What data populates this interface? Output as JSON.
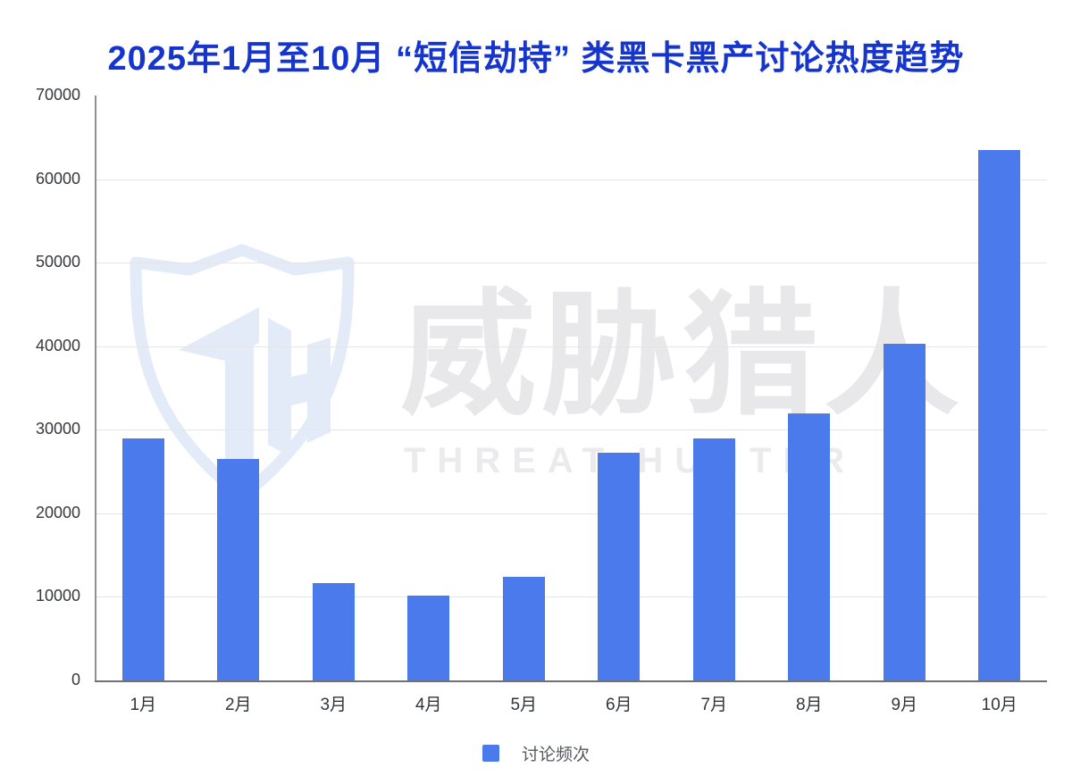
{
  "title": "2025年1月至10月 “短信劫持” 类黑卡黑产讨论热度趋势",
  "watermark": {
    "monogram": "TH",
    "cn": "威胁猎人",
    "en": "THREAT HUNTER"
  },
  "legend": {
    "label": "讨论频次"
  },
  "colors": {
    "bar": "#4b7aec",
    "title": "#1535cd",
    "axis_text": "#36383c",
    "gridline": "#e5e5e8",
    "axis_line": "#8d9094",
    "watermark_blue": "#e3ebf9",
    "watermark_gray": "#e8e8ea"
  },
  "chart_data": {
    "type": "bar",
    "title": "2025年1月至10月 “短信劫持” 类黑卡黑产讨论热度趋势",
    "categories": [
      "1月",
      "2月",
      "3月",
      "4月",
      "5月",
      "6月",
      "7月",
      "8月",
      "9月",
      "10月"
    ],
    "series": [
      {
        "name": "讨论频次",
        "values": [
          29000,
          26500,
          11700,
          10100,
          12400,
          27300,
          29000,
          32000,
          40300,
          63500
        ]
      }
    ],
    "xlabel": "",
    "ylabel": "",
    "ylim": [
      0,
      70000
    ],
    "yticks": [
      0,
      10000,
      20000,
      30000,
      40000,
      50000,
      60000,
      70000
    ],
    "grid": "horizontal",
    "legend_position": "bottom"
  }
}
